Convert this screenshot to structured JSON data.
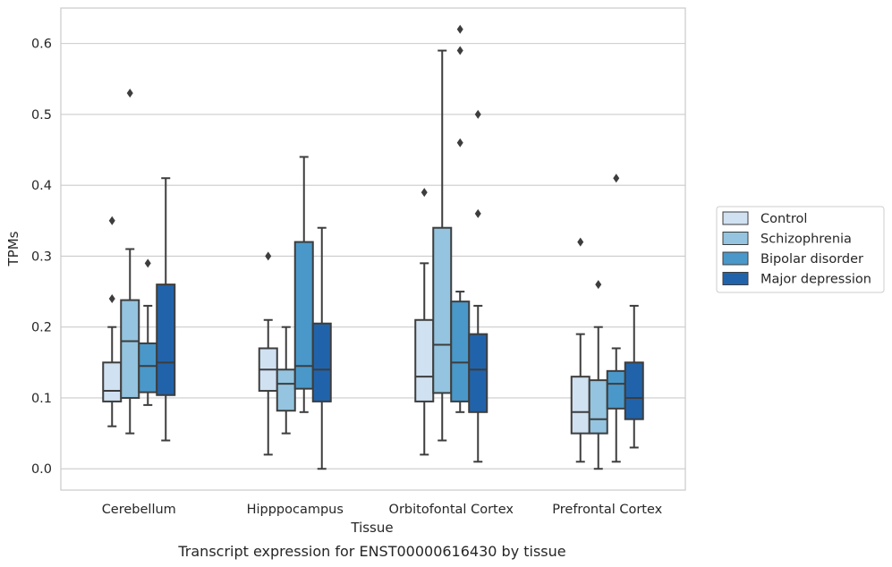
{
  "caption": "Transcript expression for ENST00000616430 by tissue",
  "chart_data": {
    "type": "boxplot",
    "xlabel": "Tissue",
    "ylabel": "TPMs",
    "ylim": [
      -0.03,
      0.65
    ],
    "yticks": [
      "0.0",
      "0.1",
      "0.2",
      "0.3",
      "0.4",
      "0.5",
      "0.6"
    ],
    "grid": true,
    "legend_position": "right",
    "categories": [
      "Cerebellum",
      "Hipppocampus",
      "Orbitofontal Cortex",
      "Prefrontal Cortex"
    ],
    "series": [
      {
        "name": "Control",
        "color": "#d0e1f2",
        "boxes": [
          {
            "whislo": 0.06,
            "q1": 0.095,
            "med": 0.11,
            "q3": 0.15,
            "whishi": 0.2,
            "fliers": [
              0.24,
              0.35
            ]
          },
          {
            "whislo": 0.02,
            "q1": 0.11,
            "med": 0.14,
            "q3": 0.17,
            "whishi": 0.21,
            "fliers": [
              0.3
            ]
          },
          {
            "whislo": 0.02,
            "q1": 0.095,
            "med": 0.13,
            "q3": 0.21,
            "whishi": 0.29,
            "fliers": [
              0.39
            ]
          },
          {
            "whislo": 0.01,
            "q1": 0.05,
            "med": 0.08,
            "q3": 0.13,
            "whishi": 0.19,
            "fliers": [
              0.32
            ]
          }
        ]
      },
      {
        "name": "Schizophrenia",
        "color": "#94c4df",
        "boxes": [
          {
            "whislo": 0.05,
            "q1": 0.1,
            "med": 0.18,
            "q3": 0.238,
            "whishi": 0.31,
            "fliers": [
              0.53
            ]
          },
          {
            "whislo": 0.05,
            "q1": 0.082,
            "med": 0.12,
            "q3": 0.14,
            "whishi": 0.2,
            "fliers": []
          },
          {
            "whislo": 0.04,
            "q1": 0.107,
            "med": 0.175,
            "q3": 0.34,
            "whishi": 0.59,
            "fliers": []
          },
          {
            "whislo": 0.0,
            "q1": 0.05,
            "med": 0.07,
            "q3": 0.125,
            "whishi": 0.2,
            "fliers": [
              0.26
            ]
          }
        ]
      },
      {
        "name": "Bipolar disorder",
        "color": "#4a98c9",
        "boxes": [
          {
            "whislo": 0.09,
            "q1": 0.108,
            "med": 0.145,
            "q3": 0.177,
            "whishi": 0.23,
            "fliers": [
              0.29
            ]
          },
          {
            "whislo": 0.08,
            "q1": 0.113,
            "med": 0.145,
            "q3": 0.32,
            "whishi": 0.44,
            "fliers": []
          },
          {
            "whislo": 0.08,
            "q1": 0.095,
            "med": 0.15,
            "q3": 0.236,
            "whishi": 0.25,
            "fliers": [
              0.46,
              0.59,
              0.62
            ]
          },
          {
            "whislo": 0.01,
            "q1": 0.085,
            "med": 0.12,
            "q3": 0.138,
            "whishi": 0.17,
            "fliers": [
              0.41
            ]
          }
        ]
      },
      {
        "name": "Major depression",
        "color": "#2163aa",
        "boxes": [
          {
            "whislo": 0.04,
            "q1": 0.104,
            "med": 0.15,
            "q3": 0.26,
            "whishi": 0.41,
            "fliers": []
          },
          {
            "whislo": 0.0,
            "q1": 0.095,
            "med": 0.14,
            "q3": 0.205,
            "whishi": 0.34,
            "fliers": []
          },
          {
            "whislo": 0.01,
            "q1": 0.08,
            "med": 0.14,
            "q3": 0.19,
            "whishi": 0.23,
            "fliers": [
              0.36,
              0.5
            ]
          },
          {
            "whislo": 0.03,
            "q1": 0.07,
            "med": 0.1,
            "q3": 0.15,
            "whishi": 0.23,
            "fliers": []
          }
        ]
      }
    ]
  }
}
